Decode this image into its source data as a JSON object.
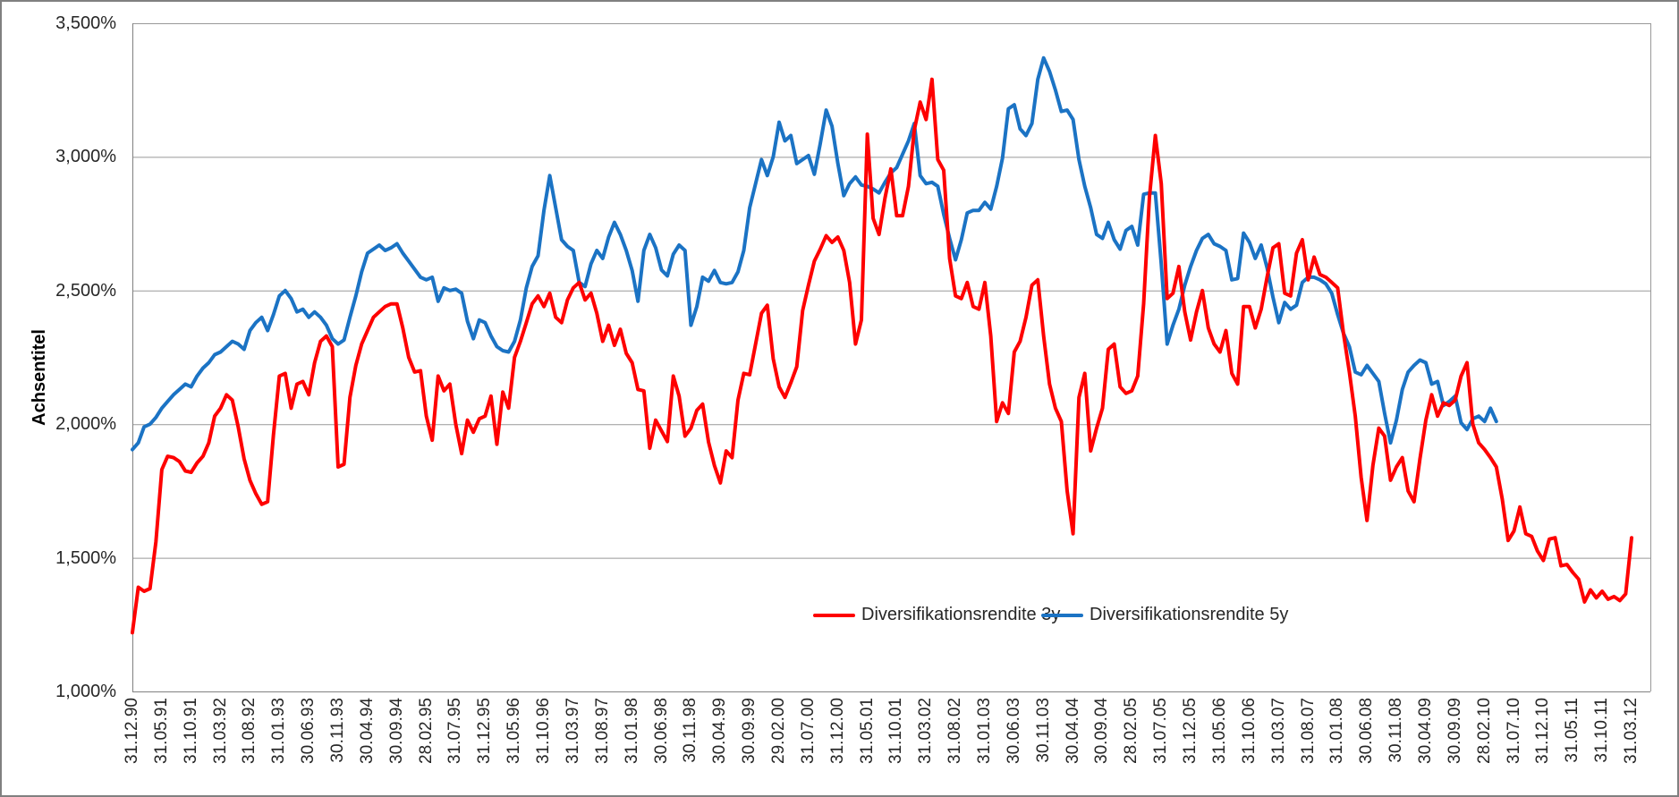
{
  "colors": {
    "background": "#FFFFFF",
    "frame_border": "#808080",
    "grid": "#999999",
    "axis": "#808080",
    "text": "#262626",
    "series_3y": "#FE0000",
    "series_5y": "#1B73C4"
  },
  "chart_data": {
    "type": "line",
    "y_axis_title": "Achsentitel",
    "ylim": [
      1000,
      3500
    ],
    "grid": "horizontal",
    "y_tick_labels": [
      "3,500%",
      "3,000%",
      "2,500%",
      "2,000%",
      "1,500%",
      "1,000%"
    ],
    "y_tick_values": [
      3500,
      3000,
      2500,
      2000,
      1500,
      1000
    ],
    "x_tick_interval_months": 5,
    "x_unit": "monthly observations, month 0 = 31.12.90",
    "x_tick_labels": [
      "31.12.90",
      "31.05.91",
      "31.10.91",
      "31.03.92",
      "31.08.92",
      "31.01.93",
      "30.06.93",
      "30.11.93",
      "30.04.94",
      "30.09.94",
      "28.02.95",
      "31.07.95",
      "31.12.95",
      "31.05.96",
      "31.10.96",
      "31.03.97",
      "31.08.97",
      "31.01.98",
      "30.06.98",
      "30.11.98",
      "30.04.99",
      "30.09.99",
      "29.02.00",
      "31.07.00",
      "31.12.00",
      "31.05.01",
      "31.10.01",
      "31.03.02",
      "31.08.02",
      "31.01.03",
      "30.06.03",
      "30.11.03",
      "30.04.04",
      "30.09.04",
      "28.02.05",
      "31.07.05",
      "31.12.05",
      "31.05.06",
      "31.10.06",
      "31.03.07",
      "31.08.07",
      "31.01.08",
      "30.06.08",
      "30.11.08",
      "30.04.09",
      "30.09.09",
      "28.02.10",
      "31.07.10",
      "31.12.10",
      "31.05.11",
      "31.10.11",
      "31.03.12"
    ],
    "legend_position": "inside-bottom-center",
    "series": [
      {
        "name": "Diversifikationsrendite 3y",
        "color": "#FE0000",
        "start_month": 0,
        "values": [
          1220,
          1390,
          1375,
          1385,
          1560,
          1830,
          1880,
          1875,
          1860,
          1825,
          1820,
          1855,
          1880,
          1930,
          2030,
          2060,
          2110,
          2090,
          1990,
          1870,
          1790,
          1740,
          1700,
          1710,
          1960,
          2180,
          2190,
          2060,
          2150,
          2160,
          2110,
          2230,
          2310,
          2330,
          2290,
          1840,
          1850,
          2100,
          2220,
          2300,
          2350,
          2400,
          2420,
          2440,
          2450,
          2450,
          2360,
          2250,
          2195,
          2200,
          2030,
          1940,
          2180,
          2125,
          2150,
          2000,
          1890,
          2015,
          1970,
          2020,
          2030,
          2105,
          1925,
          2120,
          2060,
          2250,
          2310,
          2380,
          2450,
          2480,
          2440,
          2490,
          2400,
          2380,
          2465,
          2510,
          2530,
          2465,
          2490,
          2415,
          2310,
          2370,
          2295,
          2355,
          2265,
          2230,
          2130,
          2125,
          1910,
          2015,
          1975,
          1935,
          2180,
          2105,
          1955,
          1985,
          2052,
          2075,
          1933,
          1845,
          1780,
          1900,
          1875,
          2090,
          2190,
          2185,
          2300,
          2415,
          2445,
          2245,
          2140,
          2100,
          2155,
          2215,
          2425,
          2520,
          2610,
          2655,
          2705,
          2680,
          2700,
          2650,
          2530,
          2300,
          2390,
          3085,
          2770,
          2710,
          2845,
          2955,
          2780,
          2780,
          2890,
          3100,
          3205,
          3140,
          3290,
          2990,
          2950,
          2620,
          2480,
          2470,
          2530,
          2440,
          2430,
          2530,
          2330,
          2010,
          2080,
          2040,
          2270,
          2310,
          2400,
          2520,
          2540,
          2330,
          2150,
          2060,
          2010,
          1750,
          1590,
          2100,
          2190,
          1900,
          1985,
          2060,
          2280,
          2300,
          2140,
          2115,
          2125,
          2180,
          2450,
          2850,
          3080,
          2900,
          2470,
          2490,
          2590,
          2420,
          2315,
          2420,
          2500,
          2360,
          2300,
          2270,
          2350,
          2190,
          2150,
          2440,
          2440,
          2360,
          2430,
          2550,
          2660,
          2675,
          2490,
          2480,
          2640,
          2690,
          2540,
          2625,
          2560,
          2550,
          2530,
          2510,
          2340,
          2195,
          2030,
          1800,
          1640,
          1845,
          1985,
          1955,
          1790,
          1840,
          1875,
          1750,
          1710,
          1870,
          2015,
          2110,
          2030,
          2080,
          2070,
          2090,
          2180,
          2230,
          2000,
          1930,
          1905,
          1875,
          1840,
          1720,
          1565,
          1600,
          1690,
          1590,
          1580,
          1525,
          1490,
          1570,
          1575,
          1470,
          1475,
          1445,
          1420,
          1335,
          1380,
          1350,
          1375,
          1345,
          1355,
          1340,
          1365,
          1575
        ]
      },
      {
        "name": "Diversifikationsrendite 5y",
        "color": "#1B73C4",
        "start_month": 0,
        "values": [
          1905,
          1930,
          1990,
          2000,
          2025,
          2060,
          2085,
          2110,
          2130,
          2150,
          2140,
          2180,
          2210,
          2230,
          2260,
          2270,
          2290,
          2310,
          2300,
          2280,
          2350,
          2380,
          2400,
          2350,
          2410,
          2480,
          2500,
          2470,
          2420,
          2430,
          2400,
          2420,
          2400,
          2370,
          2320,
          2300,
          2315,
          2400,
          2480,
          2570,
          2640,
          2655,
          2670,
          2650,
          2660,
          2675,
          2640,
          2610,
          2580,
          2550,
          2540,
          2550,
          2460,
          2510,
          2500,
          2505,
          2490,
          2385,
          2320,
          2390,
          2380,
          2330,
          2290,
          2275,
          2270,
          2310,
          2390,
          2510,
          2590,
          2630,
          2800,
          2930,
          2810,
          2690,
          2665,
          2650,
          2530,
          2515,
          2600,
          2650,
          2620,
          2700,
          2755,
          2710,
          2650,
          2575,
          2460,
          2650,
          2710,
          2660,
          2577,
          2555,
          2636,
          2670,
          2650,
          2370,
          2440,
          2550,
          2535,
          2575,
          2530,
          2525,
          2530,
          2570,
          2650,
          2810,
          2900,
          2990,
          2930,
          3000,
          3130,
          3060,
          3080,
          2975,
          2990,
          3005,
          2935,
          3050,
          3175,
          3115,
          2975,
          2855,
          2900,
          2925,
          2895,
          2890,
          2880,
          2865,
          2905,
          2940,
          2960,
          3010,
          3060,
          3125,
          2930,
          2900,
          2905,
          2890,
          2785,
          2695,
          2615,
          2690,
          2790,
          2800,
          2800,
          2830,
          2805,
          2890,
          2995,
          3180,
          3195,
          3105,
          3080,
          3125,
          3290,
          3370,
          3320,
          3250,
          3170,
          3175,
          3140,
          2990,
          2890,
          2810,
          2710,
          2695,
          2755,
          2690,
          2655,
          2725,
          2740,
          2670,
          2860,
          2865,
          2865,
          2600,
          2300,
          2370,
          2430,
          2520,
          2590,
          2650,
          2695,
          2710,
          2675,
          2665,
          2650,
          2540,
          2545,
          2715,
          2680,
          2620,
          2670,
          2585,
          2475,
          2380,
          2455,
          2430,
          2445,
          2530,
          2550,
          2550,
          2540,
          2525,
          2490,
          2410,
          2340,
          2290,
          2195,
          2185,
          2220,
          2190,
          2160,
          2040,
          1930,
          2015,
          2130,
          2195,
          2220,
          2240,
          2230,
          2150,
          2160,
          2070,
          2085,
          2105,
          2005,
          1980,
          2020,
          2030,
          2010,
          2060,
          2010
        ]
      }
    ]
  }
}
